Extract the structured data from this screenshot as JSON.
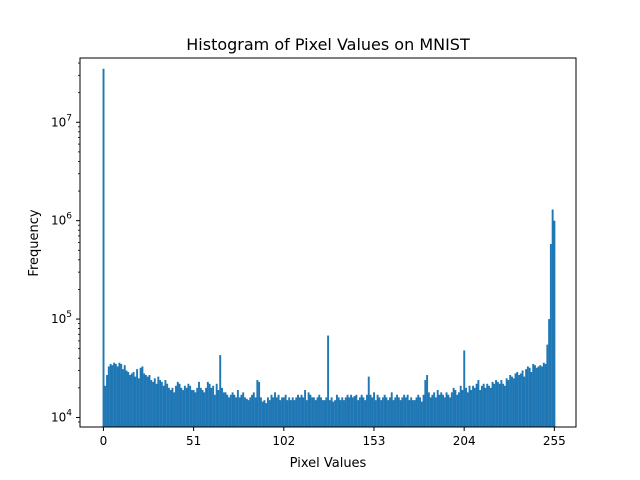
{
  "chart_data": {
    "type": "bar",
    "title": "Histogram of Pixel Values on MNIST",
    "xlabel": "Pixel Values",
    "ylabel": "Frequency",
    "xlim": [
      -12.75,
      267.75
    ],
    "ylim": [
      8000,
      45000000
    ],
    "yscale": "log",
    "x_ticks": [
      0,
      51,
      102,
      153,
      204,
      255
    ],
    "y_ticks": [
      {
        "value": 10000,
        "base": "10",
        "exp": "4"
      },
      {
        "value": 100000,
        "base": "10",
        "exp": "5"
      },
      {
        "value": 1000000,
        "base": "10",
        "exp": "6"
      },
      {
        "value": 10000000,
        "base": "10",
        "exp": "7"
      }
    ],
    "bar_color": "#1f77b4",
    "grid": false,
    "legend": "none",
    "categories": [
      0,
      1,
      2,
      3,
      4,
      5,
      6,
      7,
      8,
      9,
      10,
      11,
      12,
      13,
      14,
      15,
      16,
      17,
      18,
      19,
      20,
      21,
      22,
      23,
      24,
      25,
      26,
      27,
      28,
      29,
      30,
      31,
      32,
      33,
      34,
      35,
      36,
      37,
      38,
      39,
      40,
      41,
      42,
      43,
      44,
      45,
      46,
      47,
      48,
      49,
      50,
      51,
      52,
      53,
      54,
      55,
      56,
      57,
      58,
      59,
      60,
      61,
      62,
      63,
      64,
      65,
      66,
      67,
      68,
      69,
      70,
      71,
      72,
      73,
      74,
      75,
      76,
      77,
      78,
      79,
      80,
      81,
      82,
      83,
      84,
      85,
      86,
      87,
      88,
      89,
      90,
      91,
      92,
      93,
      94,
      95,
      96,
      97,
      98,
      99,
      100,
      101,
      102,
      103,
      104,
      105,
      106,
      107,
      108,
      109,
      110,
      111,
      112,
      113,
      114,
      115,
      116,
      117,
      118,
      119,
      120,
      121,
      122,
      123,
      124,
      125,
      126,
      127,
      128,
      129,
      130,
      131,
      132,
      133,
      134,
      135,
      136,
      137,
      138,
      139,
      140,
      141,
      142,
      143,
      144,
      145,
      146,
      147,
      148,
      149,
      150,
      151,
      152,
      153,
      154,
      155,
      156,
      157,
      158,
      159,
      160,
      161,
      162,
      163,
      164,
      165,
      166,
      167,
      168,
      169,
      170,
      171,
      172,
      173,
      174,
      175,
      176,
      177,
      178,
      179,
      180,
      181,
      182,
      183,
      184,
      185,
      186,
      187,
      188,
      189,
      190,
      191,
      192,
      193,
      194,
      195,
      196,
      197,
      198,
      199,
      200,
      201,
      202,
      203,
      204,
      205,
      206,
      207,
      208,
      209,
      210,
      211,
      212,
      213,
      214,
      215,
      216,
      217,
      218,
      219,
      220,
      221,
      222,
      223,
      224,
      225,
      226,
      227,
      228,
      229,
      230,
      231,
      232,
      233,
      234,
      235,
      236,
      237,
      238,
      239,
      240,
      241,
      242,
      243,
      244,
      245,
      246,
      247,
      248,
      249,
      250,
      251,
      252,
      253,
      254,
      255
    ],
    "values": [
      35000000,
      21000,
      27000,
      33000,
      35000,
      34000,
      36000,
      35000,
      33000,
      36000,
      35000,
      31000,
      34000,
      30000,
      29000,
      27000,
      28000,
      29000,
      26000,
      31000,
      25000,
      32000,
      33000,
      28000,
      27000,
      26000,
      27000,
      24000,
      23000,
      25000,
      22000,
      26000,
      24000,
      23000,
      21000,
      24000,
      22000,
      20000,
      19000,
      20000,
      18000,
      21000,
      23000,
      22000,
      20000,
      19000,
      21000,
      20000,
      22000,
      21000,
      19000,
      19000,
      18000,
      20000,
      23000,
      20000,
      19000,
      18000,
      20000,
      23000,
      22000,
      20000,
      21000,
      17000,
      22000,
      19000,
      43000,
      20000,
      18000,
      18000,
      17000,
      16000,
      17000,
      18000,
      17000,
      16000,
      19000,
      16000,
      17000,
      18000,
      16000,
      15500,
      15000,
      16000,
      17000,
      18000,
      16000,
      24000,
      23000,
      16000,
      14500,
      15000,
      14000,
      16000,
      15000,
      17000,
      16000,
      18000,
      16000,
      17000,
      15000,
      16000,
      16000,
      17000,
      15000,
      16000,
      15000,
      16000,
      15000,
      16000,
      17000,
      16000,
      17000,
      16000,
      19000,
      15000,
      18000,
      17000,
      16000,
      16000,
      15000,
      16000,
      17000,
      16000,
      15000,
      15000,
      16000,
      68000,
      15000,
      16000,
      14500,
      15000,
      17000,
      16000,
      15000,
      16000,
      15000,
      16000,
      17000,
      16000,
      17000,
      16000,
      16500,
      17000,
      15000,
      16000,
      17000,
      16000,
      15000,
      17000,
      26000,
      17000,
      16000,
      18000,
      15000,
      17000,
      16000,
      15000,
      16000,
      17000,
      16000,
      15000,
      16000,
      18000,
      15000,
      16000,
      17000,
      16000,
      15000,
      16000,
      17000,
      16000,
      17000,
      15000,
      16000,
      15000,
      15000,
      16000,
      17000,
      16000,
      14500,
      17000,
      24000,
      27000,
      18000,
      16000,
      17000,
      18000,
      16000,
      19000,
      17000,
      18000,
      17000,
      16000,
      18000,
      17000,
      16000,
      18000,
      20000,
      19000,
      17000,
      18000,
      21000,
      19000,
      48000,
      20000,
      18000,
      21000,
      19000,
      21000,
      20000,
      22000,
      24000,
      19000,
      21000,
      22000,
      20000,
      22000,
      21000,
      20000,
      23000,
      22000,
      24000,
      23000,
      22000,
      24000,
      22000,
      21000,
      25000,
      24000,
      27000,
      26000,
      25000,
      28000,
      29000,
      27000,
      28000,
      30000,
      26000,
      31000,
      33000,
      32000,
      29000,
      35000,
      34000,
      32000,
      33000,
      34000,
      33000,
      36000,
      35000,
      55000,
      100000,
      580000,
      1300000,
      1000000
    ]
  }
}
